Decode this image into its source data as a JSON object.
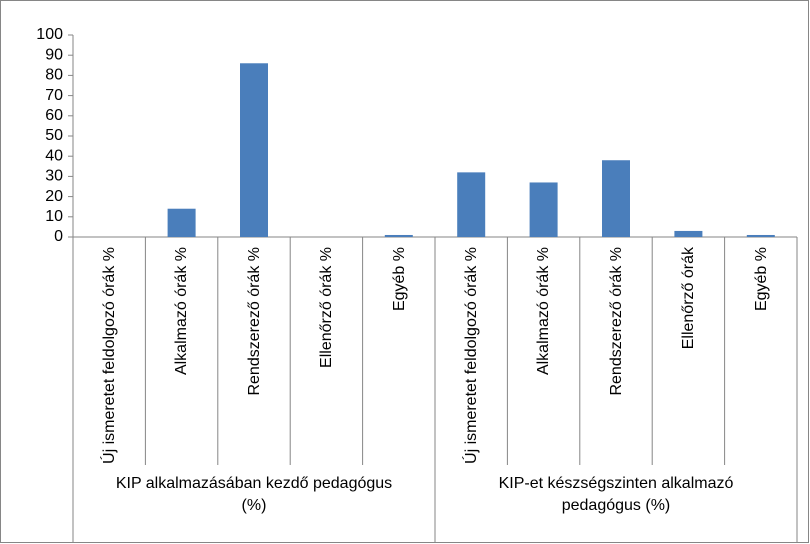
{
  "chart_data": {
    "type": "bar",
    "color": "#4a7ebb",
    "ylim": [
      0,
      100
    ],
    "yticks": [
      0,
      10,
      20,
      30,
      40,
      50,
      60,
      70,
      80,
      90,
      100
    ],
    "grid": false,
    "groups": [
      {
        "label": "KIP alkalmazásában kezdő pedagógus (%)",
        "categories": [
          "Új ismeretet feldolgozó órák %",
          "Alkalmazó órák %",
          "Rendszerező órák %",
          "Ellenőrző órák %",
          "Egyéb %"
        ],
        "values": [
          0,
          14,
          86,
          0,
          1
        ]
      },
      {
        "label": "KIP-et készségszinten alkalmazó pedagógus (%)",
        "categories": [
          "Új ismeretet feldolgozó órák %",
          "Alkalmazó órák %",
          "Rendszerező órák %",
          "Ellenőrző órák",
          "Egyéb %"
        ],
        "values": [
          32,
          27,
          38,
          3,
          1
        ]
      }
    ]
  }
}
